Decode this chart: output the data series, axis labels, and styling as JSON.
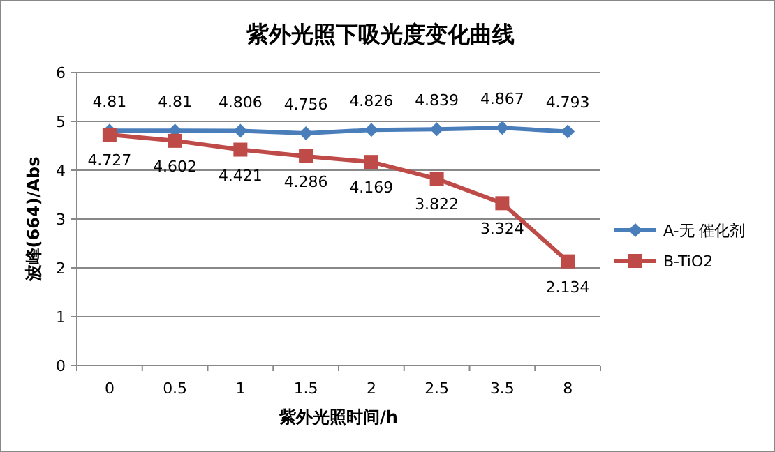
{
  "chart_data": {
    "type": "line",
    "title": "紫外光照下吸光度变化曲线",
    "xlabel": "紫外光照时间/h",
    "ylabel": "波峰(664)/Abs",
    "categories": [
      "0",
      "0.5",
      "1",
      "1.5",
      "2",
      "2.5",
      "3.5",
      "8"
    ],
    "series": [
      {
        "name": "A-无 催化剂",
        "color": "#4a7ebb",
        "marker": "diamond",
        "values": [
          4.81,
          4.81,
          4.806,
          4.756,
          4.826,
          4.839,
          4.867,
          4.793
        ]
      },
      {
        "name": "B-TiO2",
        "color": "#be4b48",
        "marker": "square",
        "values": [
          4.727,
          4.602,
          4.421,
          4.286,
          4.169,
          3.822,
          3.324,
          2.134
        ]
      }
    ],
    "ylim": [
      0,
      6
    ],
    "yticks": [
      0,
      1,
      2,
      3,
      4,
      5,
      6
    ],
    "grid": "y",
    "legend": "right",
    "data_labels": true
  }
}
